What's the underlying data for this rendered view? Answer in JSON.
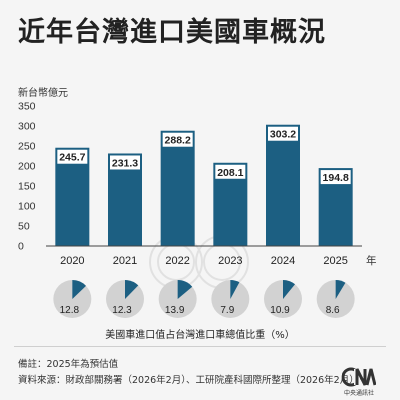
{
  "title": "近年台灣進口美國車概況",
  "colors": {
    "bar": "#1c5f82",
    "label_bg": "#ffffff",
    "pie_fill": "#1c5f82",
    "pie_bg": "#d2d2d2",
    "axis": "#444444",
    "grid": "#dddddd"
  },
  "chart_data": [
    {
      "type": "bar",
      "title": "近年台灣進口美國車概況",
      "ylabel": "新台幣億元",
      "xlabel": "年",
      "categories": [
        "2020",
        "2021",
        "2022",
        "2023",
        "2024",
        "2025"
      ],
      "values": [
        245.7,
        231.3,
        288.2,
        208.1,
        303.2,
        194.8
      ],
      "value_labels": [
        "245.7",
        "231.3",
        "288.2",
        "208.1",
        "303.2",
        "194.8"
      ],
      "ylim": [
        0,
        350
      ],
      "yticks": [
        "0",
        "50",
        "100",
        "150",
        "200",
        "250",
        "300",
        "350"
      ],
      "grid": false
    },
    {
      "type": "pie",
      "title": "美國車進口值占台灣進口車總值比重（%）",
      "categories": [
        "2020",
        "2021",
        "2022",
        "2023",
        "2024",
        "2025"
      ],
      "values": [
        12.8,
        12.3,
        13.9,
        7.9,
        10.9,
        8.6
      ],
      "value_labels": [
        "12.8",
        "12.3",
        "13.9",
        "7.9",
        "10.9",
        "8.6"
      ]
    }
  ],
  "footer": {
    "note": "備註：2025年為預估值",
    "source": "資料來源：財政部關務署（2026年2月）、工研院產科國際所整理（2026年2月）",
    "logo_text": "中央通訊社"
  }
}
